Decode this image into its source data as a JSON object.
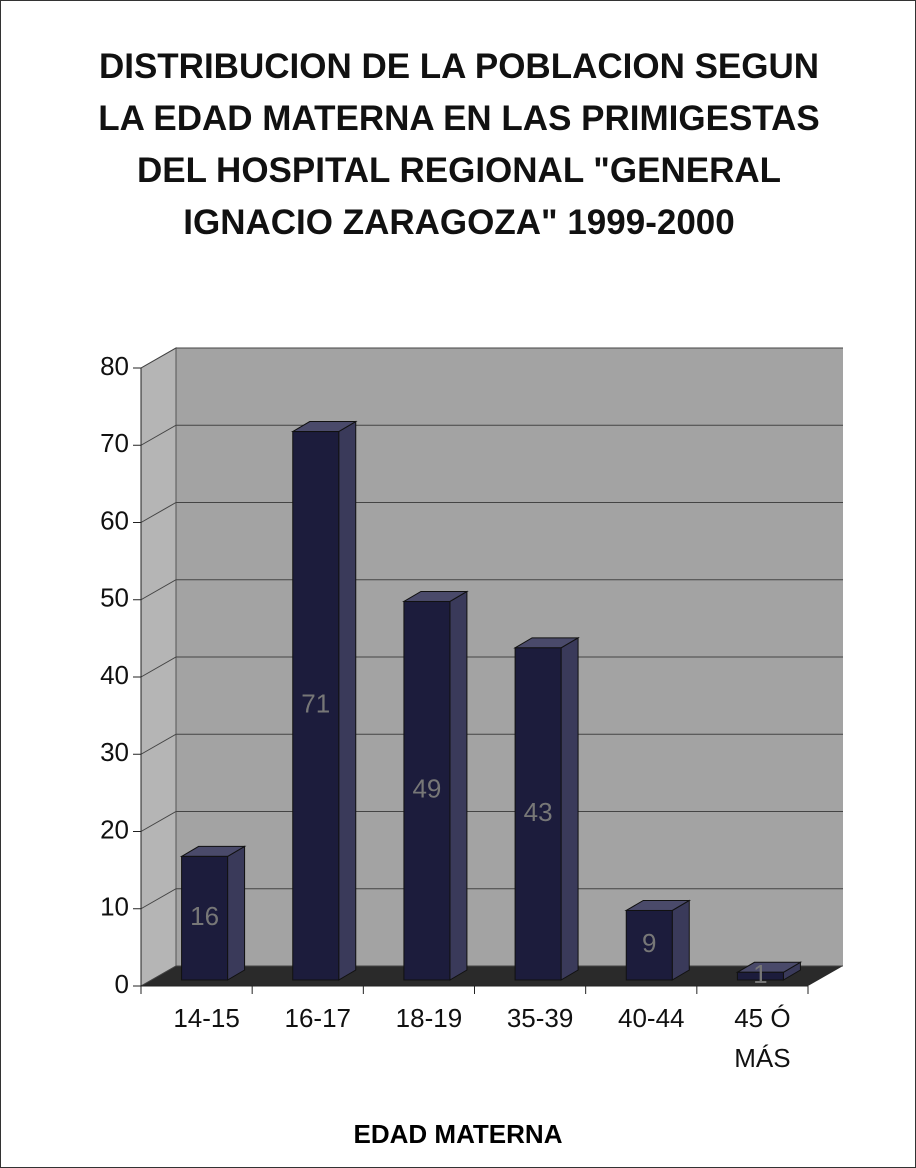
{
  "chart_data": {
    "type": "bar",
    "title": "DISTRIBUCION DE LA POBLACION SEGUN LA EDAD MATERNA EN LAS PRIMIGESTAS DEL HOSPITAL REGIONAL \"GENERAL IGNACIO ZARAGOZA\" 1999-2000",
    "x_label": "EDAD MATERNA",
    "categories": [
      "14-15",
      "16-17",
      "18-19",
      "35-39",
      "40-44",
      "45 Ó MÁS"
    ],
    "values": [
      16,
      71,
      49,
      43,
      9,
      1
    ],
    "color": "#1c1c3c",
    "ylim": [
      0,
      80
    ],
    "yticks": [
      0,
      10,
      20,
      30,
      40,
      50,
      60,
      70,
      80
    ],
    "grid": true
  }
}
